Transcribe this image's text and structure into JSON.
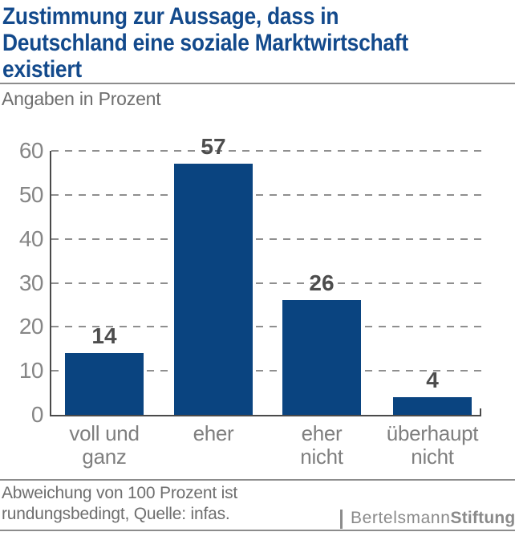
{
  "header": {
    "title_lines": [
      "Zustimmung zur Aussage, dass in",
      "Deutschland eine soziale Marktwirtschaft",
      "existiert"
    ],
    "subtitle": "Angaben in Prozent"
  },
  "chart_data": {
    "type": "bar",
    "title": "Zustimmung zur Aussage, dass in Deutschland eine soziale Marktwirtschaft existiert",
    "subtitle": "Angaben in Prozent",
    "categories": [
      "voll und ganz",
      "eher",
      "eher nicht",
      "überhaupt nicht"
    ],
    "category_label_lines": [
      [
        "voll und",
        "ganz"
      ],
      [
        "eher"
      ],
      [
        "eher",
        "nicht"
      ],
      [
        "überhaupt",
        "nicht"
      ]
    ],
    "values": [
      14,
      57,
      26,
      4
    ],
    "xlabel": "",
    "ylabel": "Angaben in Prozent",
    "ylim": [
      0,
      60
    ],
    "yticks": [
      0,
      10,
      20,
      30,
      40,
      50,
      60
    ],
    "grid": "horizontal-dashed",
    "legend": "none",
    "bar_color": "#0a4480"
  },
  "footer": {
    "note_lines": [
      "Abweichung von 100 Prozent ist",
      "rundungsbedingt, Quelle: infas."
    ],
    "logo_regular": "Bertelsmann",
    "logo_bold": "Stiftung"
  },
  "colors": {
    "title_blue": "#134a8c",
    "bar_blue": "#0a4480",
    "divider_gray": "#8c8c8c",
    "axis_gray": "#4a4a4a",
    "tick_gray": "#868686",
    "value_gray": "#4d4d4d",
    "text_gray": "#6e6e6e",
    "logo_gray": "#8a8a8a"
  }
}
